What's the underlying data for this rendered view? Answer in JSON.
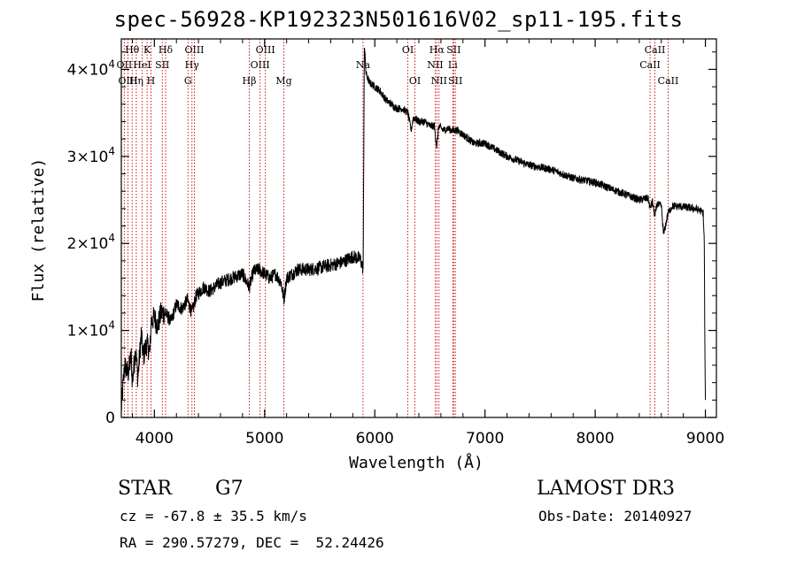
{
  "chart_data": {
    "type": "line",
    "title": "spec-56928-KP192323N501616V02_sp11-195.fits",
    "xlabel": "Wavelength (Å)",
    "ylabel": "Flux (relative)",
    "xlim": [
      3700,
      9100
    ],
    "ylim": [
      0,
      43500
    ],
    "x_ticks": [
      {
        "value": 4000,
        "label": "4000"
      },
      {
        "value": 5000,
        "label": "5000"
      },
      {
        "value": 6000,
        "label": "6000"
      },
      {
        "value": 7000,
        "label": "7000"
      },
      {
        "value": 8000,
        "label": "8000"
      },
      {
        "value": 9000,
        "label": "9000"
      }
    ],
    "y_ticks": [
      {
        "value": 0,
        "mantissa": "0",
        "exponent": ""
      },
      {
        "value": 10000,
        "mantissa": "1×10",
        "exponent": "4"
      },
      {
        "value": 20000,
        "mantissa": "2×10",
        "exponent": "4"
      },
      {
        "value": 30000,
        "mantissa": "3×10",
        "exponent": "4"
      },
      {
        "value": 40000,
        "mantissa": "4×10",
        "exponent": "4"
      }
    ],
    "series": [
      {
        "name": "spectrum",
        "x": [
          3700,
          3730,
          3760,
          3790,
          3800,
          3830,
          3850,
          3880,
          3900,
          3930,
          3960,
          3970,
          4000,
          4030,
          4060,
          4100,
          4150,
          4200,
          4250,
          4300,
          4340,
          4380,
          4450,
          4500,
          4600,
          4700,
          4800,
          4861,
          4900,
          4950,
          5000,
          5050,
          5100,
          5150,
          5175,
          5200,
          5300,
          5400,
          5500,
          5600,
          5700,
          5800,
          5870,
          5895,
          5905,
          5920,
          5950,
          6000,
          6050,
          6100,
          6150,
          6200,
          6250,
          6300,
          6330,
          6350,
          6400,
          6450,
          6500,
          6540,
          6563,
          6580,
          6620,
          6660,
          6700,
          6750,
          6800,
          6900,
          7000,
          7200,
          7400,
          7600,
          7800,
          8000,
          8200,
          8400,
          8480,
          8498,
          8520,
          8542,
          8560,
          8600,
          8620,
          8662,
          8700,
          8800,
          8900,
          8950,
          8980,
          8990,
          8995,
          9000
        ],
        "y": [
          1000,
          6000,
          5000,
          7000,
          4000,
          8000,
          4500,
          9500,
          7000,
          8500,
          7500,
          11000,
          11500,
          10500,
          12000,
          12000,
          11000,
          13000,
          12500,
          13500,
          12000,
          14000,
          15000,
          14500,
          15500,
          16000,
          16500,
          15000,
          16800,
          17000,
          16500,
          16000,
          16500,
          15500,
          13500,
          16000,
          17000,
          17000,
          17200,
          17500,
          17800,
          18500,
          18200,
          17000,
          43000,
          39500,
          38500,
          38000,
          37500,
          36500,
          36000,
          35500,
          35500,
          35000,
          33000,
          34500,
          34000,
          34000,
          33500,
          33500,
          31000,
          33500,
          33000,
          33200,
          33000,
          33000,
          32500,
          31500,
          31500,
          30000,
          29000,
          28500,
          27500,
          27000,
          26000,
          25000,
          25200,
          24000,
          24800,
          23000,
          24500,
          24300,
          21000,
          23500,
          24300,
          24200,
          24000,
          23800,
          23500,
          20000,
          8000,
          2000
        ]
      }
    ],
    "line_markers": [
      {
        "label": "Hθ",
        "wavelength": 3798,
        "row": 0
      },
      {
        "label": "OII",
        "wavelength": 3727,
        "row": 1
      },
      {
        "label": "OIII",
        "wavelength": 3760,
        "row": 2
      },
      {
        "label": "Hη",
        "wavelength": 3836,
        "row": 2
      },
      {
        "label": "HeI",
        "wavelength": 3889,
        "row": 1
      },
      {
        "label": "K",
        "wavelength": 3934,
        "row": 0
      },
      {
        "label": "H",
        "wavelength": 3969,
        "row": 2
      },
      {
        "label": "SII",
        "wavelength": 4072,
        "row": 1
      },
      {
        "label": "Hδ",
        "wavelength": 4102,
        "row": 0
      },
      {
        "label": "G",
        "wavelength": 4305,
        "row": 2
      },
      {
        "label": "Hγ",
        "wavelength": 4341,
        "row": 1
      },
      {
        "label": "OIII",
        "wavelength": 4363,
        "row": 0
      },
      {
        "label": "Hβ",
        "wavelength": 4861,
        "row": 2
      },
      {
        "label": "OIII",
        "wavelength": 4959,
        "row": 1
      },
      {
        "label": "OIII",
        "wavelength": 5007,
        "row": 0
      },
      {
        "label": "Mg",
        "wavelength": 5175,
        "row": 2
      },
      {
        "label": "Na",
        "wavelength": 5893,
        "row": 1
      },
      {
        "label": "OI",
        "wavelength": 6300,
        "row": 0
      },
      {
        "label": "OI",
        "wavelength": 6364,
        "row": 2
      },
      {
        "label": "NII",
        "wavelength": 6548,
        "row": 1
      },
      {
        "label": "Hα",
        "wavelength": 6563,
        "row": 0
      },
      {
        "label": "NII",
        "wavelength": 6583,
        "row": 2
      },
      {
        "label": "Li",
        "wavelength": 6708,
        "row": 1
      },
      {
        "label": "SII",
        "wavelength": 6716,
        "row": 0
      },
      {
        "label": "SII",
        "wavelength": 6731,
        "row": 2
      },
      {
        "label": "CaII",
        "wavelength": 8498,
        "row": 1
      },
      {
        "label": "CaII",
        "wavelength": 8542,
        "row": 0
      },
      {
        "label": "CaII",
        "wavelength": 8662,
        "row": 2
      }
    ],
    "marker_color": "#cc0000"
  },
  "info": {
    "object_class": "STAR",
    "subclass": "G7",
    "survey": "LAMOST DR3",
    "redshift_text": "cz = -67.8 ± 35.5 km/s",
    "obs_date_text": "Obs-Date: 20140927",
    "coords_text": "RA = 290.57279, DEC =  52.24426"
  }
}
